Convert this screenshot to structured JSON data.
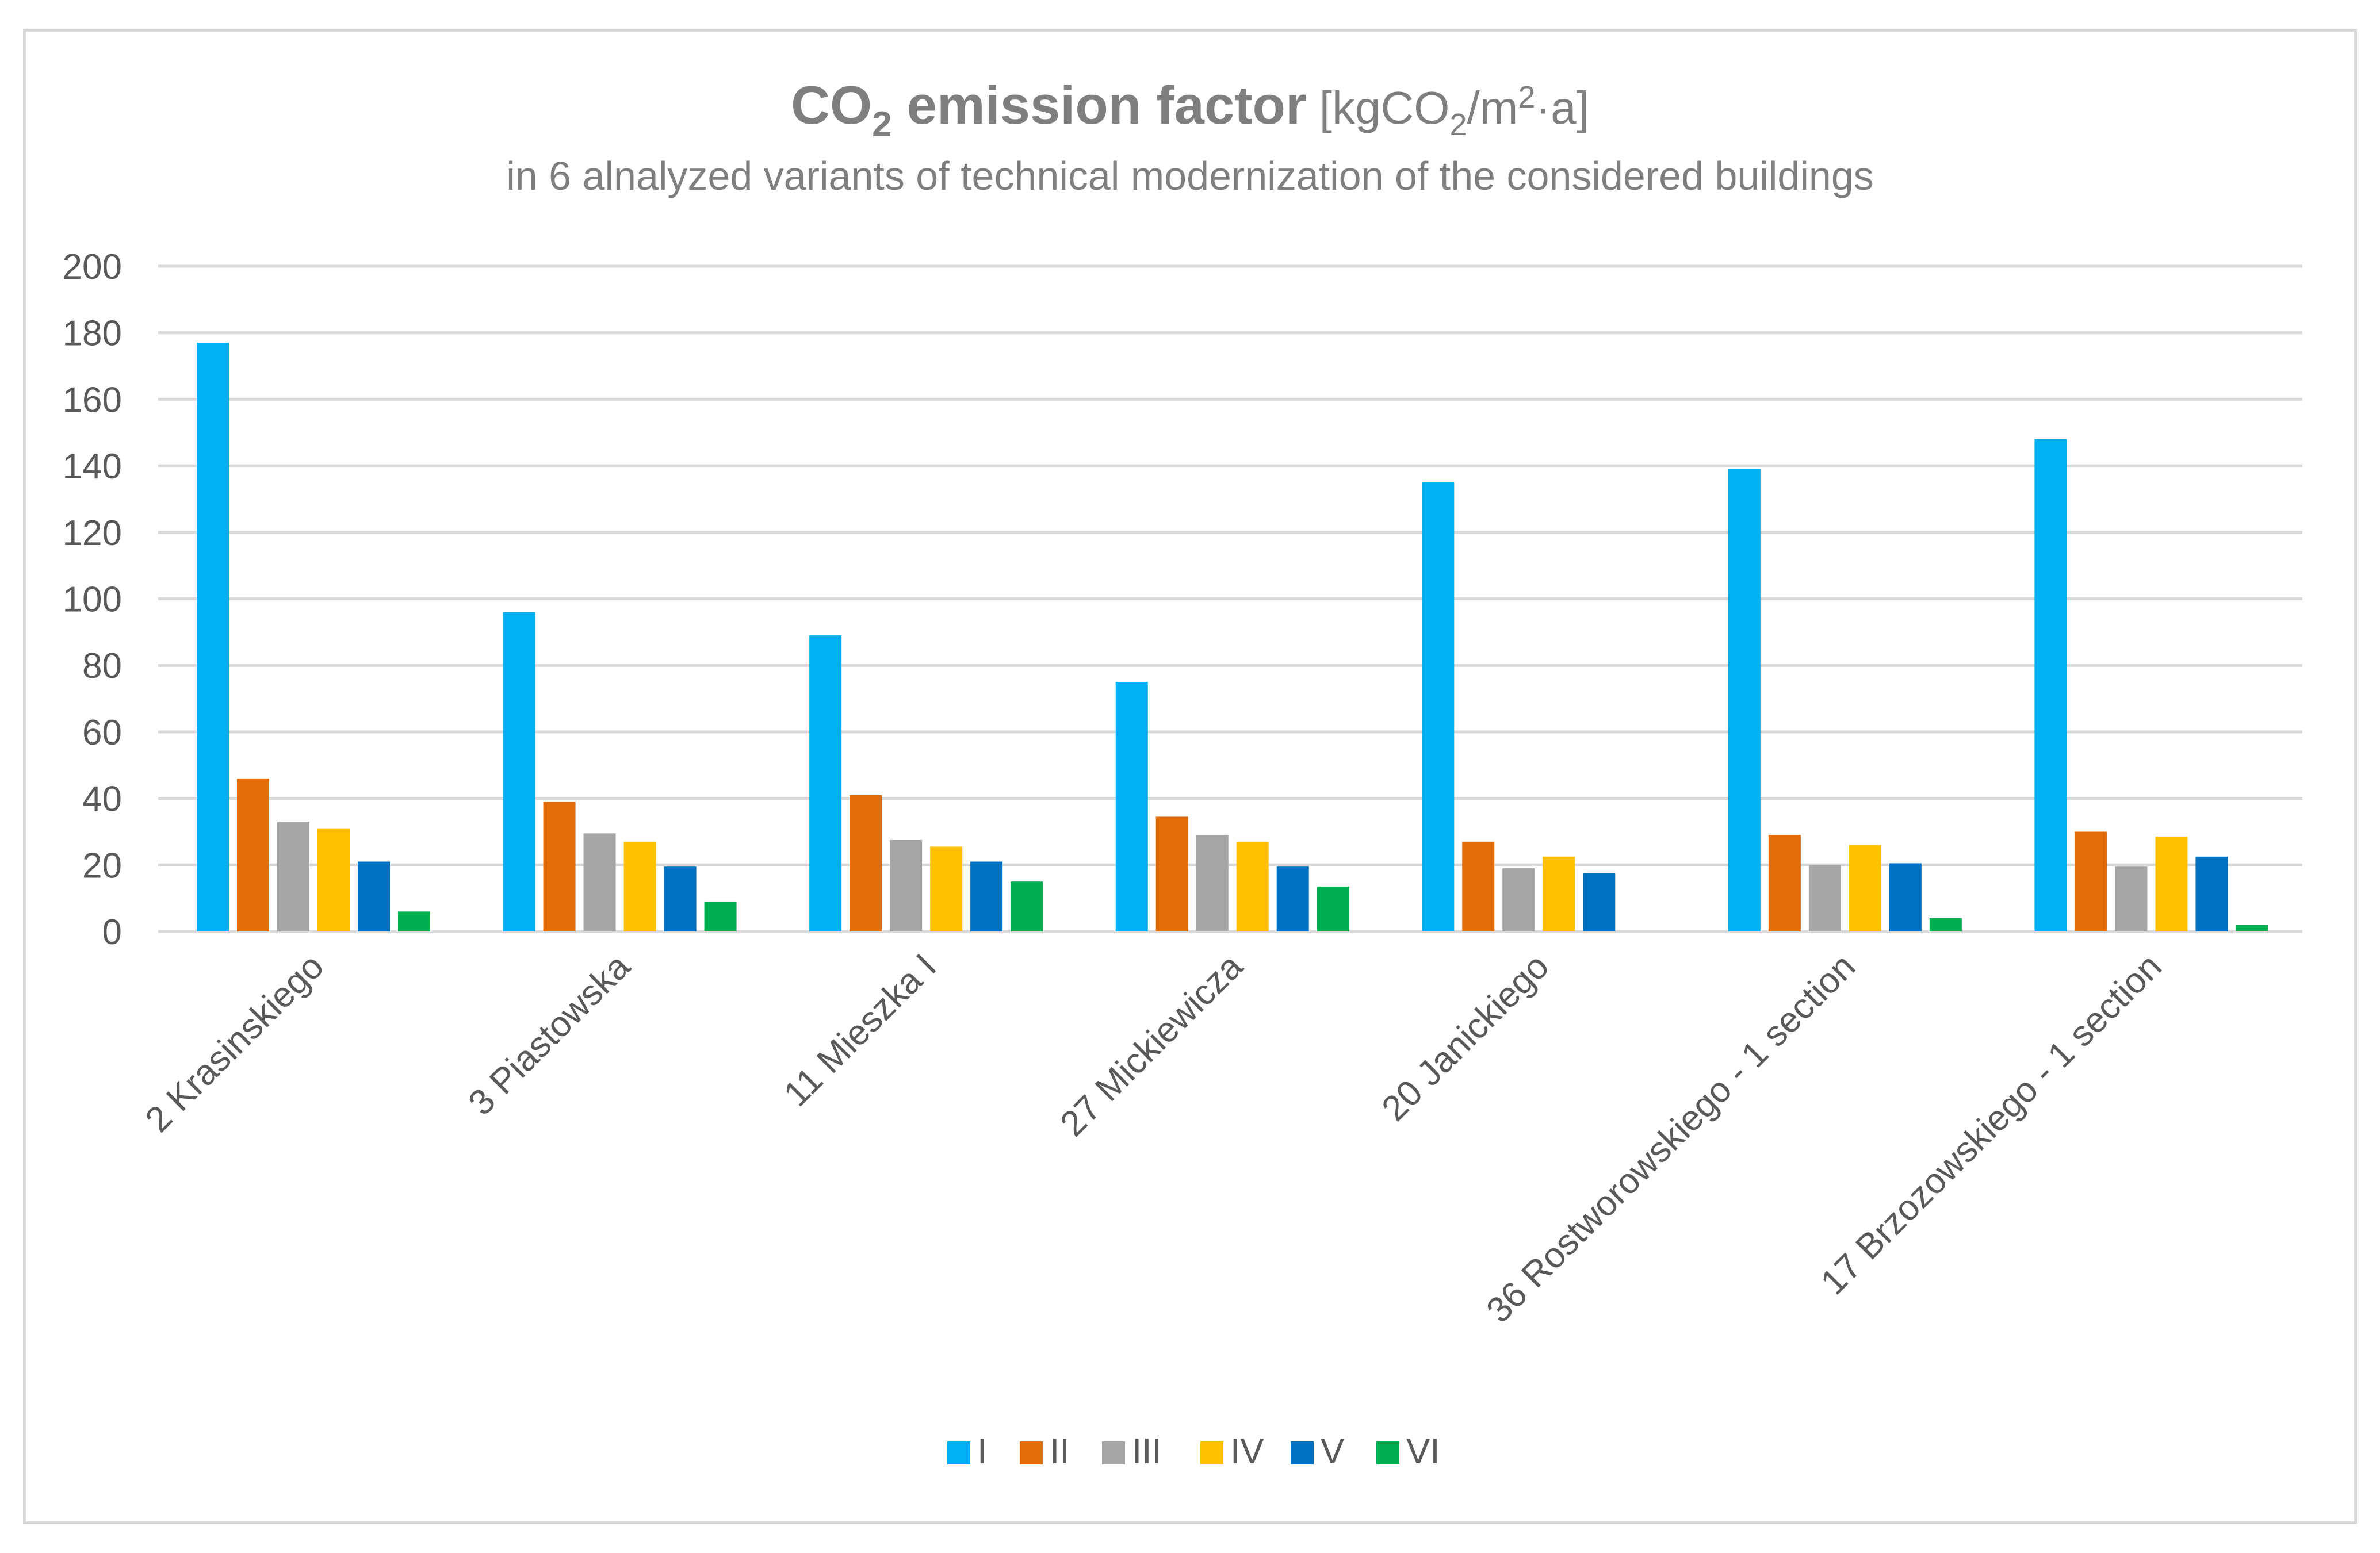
{
  "chart_data": {
    "type": "bar",
    "title": {
      "main": "CO",
      "main_sub": "2",
      "main_rest": " emission factor",
      "unit_prefix": " [kgCO",
      "unit_sub": "2",
      "unit_mid": "/m",
      "unit_sup": "2",
      "unit_suffix": "·a]"
    },
    "subtitle": "in 6 alnalyzed variants of technical modernization of the considered buildings",
    "categories": [
      "2 Krasinskiego",
      "3 Piastowska",
      "11 Mieszka I",
      "27 Mickiewicza",
      "20 Janickiego",
      "36 Rostworowskiego - 1 section",
      "17 Brzozowskiego - 1 section"
    ],
    "series": [
      {
        "name": "I",
        "color": "#00b0f0",
        "values": [
          177,
          96,
          89,
          75,
          135,
          139,
          148
        ]
      },
      {
        "name": "II",
        "color": "#e26b0a",
        "values": [
          46,
          39,
          41,
          34.5,
          27,
          29,
          30
        ]
      },
      {
        "name": "III",
        "color": "#a5a5a5",
        "values": [
          33,
          29.5,
          27.5,
          29,
          19,
          20,
          19.5
        ]
      },
      {
        "name": "IV",
        "color": "#ffc000",
        "values": [
          31,
          27,
          25.5,
          27,
          22.5,
          26,
          28.5
        ]
      },
      {
        "name": "V",
        "color": "#0070c0",
        "values": [
          21,
          19.5,
          21,
          19.5,
          17.5,
          20.5,
          22.5
        ]
      },
      {
        "name": "VI",
        "color": "#00b050",
        "values": [
          6,
          9,
          15,
          13.5,
          0,
          4,
          2
        ]
      }
    ],
    "yticks": [
      0,
      20,
      40,
      60,
      80,
      100,
      120,
      140,
      160,
      180,
      200
    ],
    "ylim": [
      0,
      200
    ],
    "grid": true,
    "legend_position": "bottom",
    "xlabel": "",
    "ylabel": ""
  }
}
